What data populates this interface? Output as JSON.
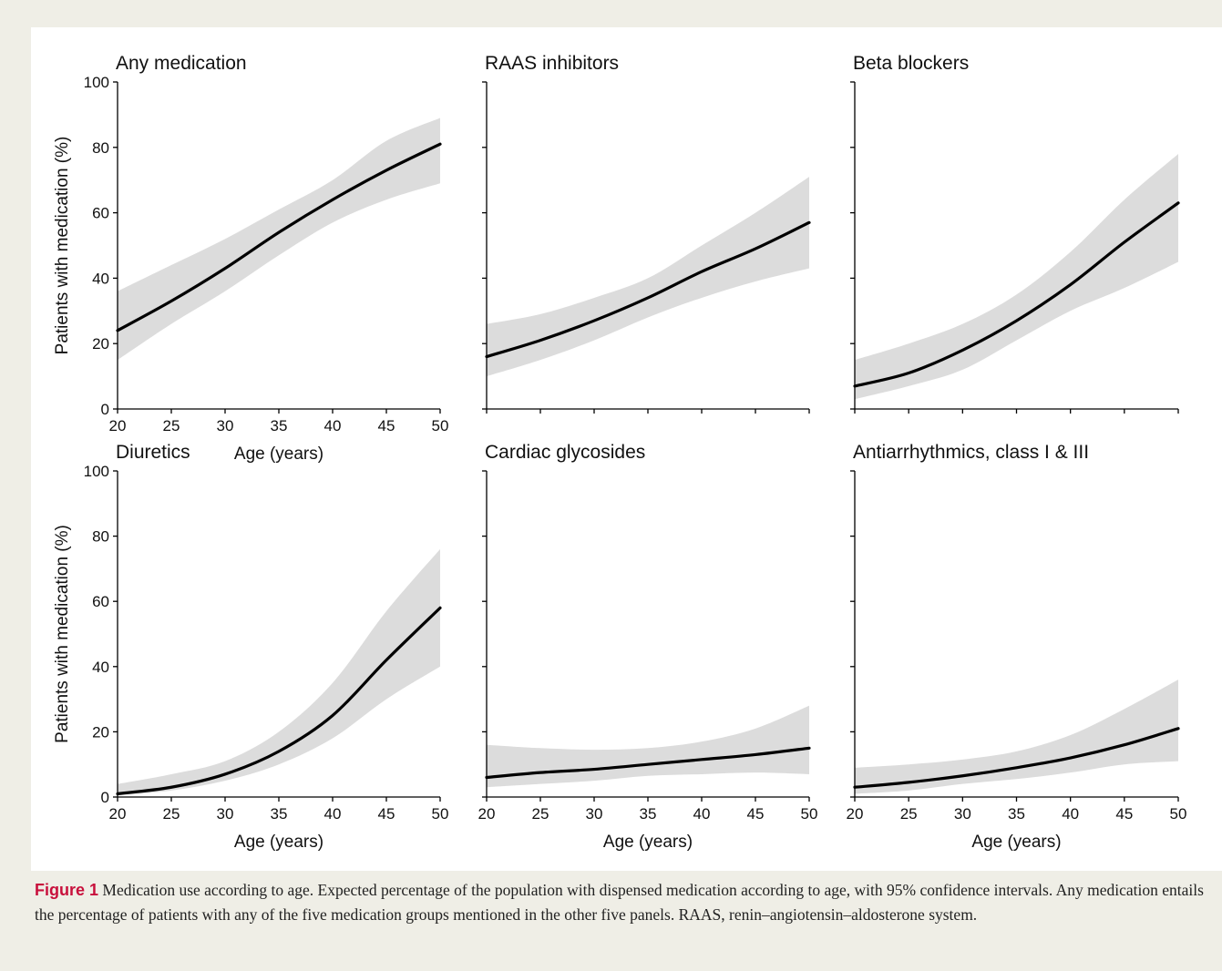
{
  "caption": {
    "label": "Figure 1",
    "text": " Medication use according to age. Expected percentage of the population with dispensed medication according to age, with 95% confidence intervals. Any medication entails the percentage of patients with any of the five medication groups mentioned in the other five panels. RAAS, renin–angiotensin–aldosterone system."
  },
  "colors": {
    "line": "#000000",
    "band": "#dcdcdc",
    "background": "#efeee6",
    "caption_label": "#c8103c"
  },
  "chart_data": [
    {
      "type": "line",
      "title": "Any medication",
      "xlabel": "Age (years)",
      "ylabel": "Patients with medication (%)",
      "xlim": [
        20,
        50
      ],
      "ylim": [
        0,
        100
      ],
      "xticks": [
        20,
        25,
        30,
        35,
        40,
        45,
        50
      ],
      "yticks": [
        0,
        20,
        40,
        60,
        80,
        100
      ],
      "x": [
        20,
        25,
        30,
        35,
        40,
        45,
        50
      ],
      "series": [
        {
          "values": [
            24,
            33,
            43,
            54,
            64,
            73,
            81
          ],
          "ci_lower": [
            15,
            26,
            36,
            47,
            57,
            64,
            69
          ],
          "ci_upper": [
            36,
            44,
            52,
            61,
            70,
            82,
            89
          ]
        }
      ],
      "grid": false
    },
    {
      "type": "line",
      "title": "RAAS inhibitors",
      "xlabel": "",
      "ylabel": "",
      "xlim": [
        20,
        50
      ],
      "ylim": [
        0,
        100
      ],
      "xticks": [],
      "yticks": [
        0,
        20,
        40,
        60,
        80,
        100
      ],
      "x": [
        20,
        25,
        30,
        35,
        40,
        45,
        50
      ],
      "series": [
        {
          "values": [
            16,
            21,
            27,
            34,
            42,
            49,
            57
          ],
          "ci_lower": [
            10,
            15,
            21,
            28,
            34,
            39,
            43
          ],
          "ci_upper": [
            26,
            29,
            34,
            40,
            50,
            60,
            71
          ]
        }
      ],
      "grid": false
    },
    {
      "type": "line",
      "title": "Beta blockers",
      "xlabel": "",
      "ylabel": "",
      "xlim": [
        20,
        50
      ],
      "ylim": [
        0,
        100
      ],
      "xticks": [],
      "yticks": [
        0,
        20,
        40,
        60,
        80,
        100
      ],
      "x": [
        20,
        25,
        30,
        35,
        40,
        45,
        50
      ],
      "series": [
        {
          "values": [
            7,
            11,
            18,
            27,
            38,
            51,
            63
          ],
          "ci_lower": [
            3,
            7,
            12,
            21,
            30,
            37,
            45
          ],
          "ci_upper": [
            15,
            20,
            26,
            35,
            48,
            64,
            78
          ]
        }
      ],
      "grid": false
    },
    {
      "type": "line",
      "title": "Diuretics",
      "xlabel": "Age (years)",
      "ylabel": "Patients with medication (%)",
      "xlim": [
        20,
        50
      ],
      "ylim": [
        0,
        100
      ],
      "xticks": [
        20,
        25,
        30,
        35,
        40,
        45,
        50
      ],
      "yticks": [
        0,
        20,
        40,
        60,
        80,
        100
      ],
      "x": [
        20,
        25,
        30,
        35,
        40,
        45,
        50
      ],
      "series": [
        {
          "values": [
            1,
            3,
            7,
            14,
            25,
            42,
            58
          ],
          "ci_lower": [
            0.5,
            2,
            5,
            10,
            18,
            30,
            40
          ],
          "ci_upper": [
            4,
            7,
            11,
            20,
            35,
            57,
            76
          ]
        }
      ],
      "grid": false
    },
    {
      "type": "line",
      "title": "Cardiac glycosides",
      "xlabel": "Age (years)",
      "ylabel": "",
      "xlim": [
        20,
        50
      ],
      "ylim": [
        0,
        100
      ],
      "xticks": [
        20,
        25,
        30,
        35,
        40,
        45,
        50
      ],
      "yticks": [
        0,
        20,
        40,
        60,
        80,
        100
      ],
      "x": [
        20,
        25,
        30,
        35,
        40,
        45,
        50
      ],
      "series": [
        {
          "values": [
            6,
            7.5,
            8.5,
            10,
            11.5,
            13,
            15
          ],
          "ci_lower": [
            3,
            4,
            5,
            6.5,
            7,
            7.5,
            7
          ],
          "ci_upper": [
            16,
            15,
            14.5,
            15,
            17,
            21,
            28
          ]
        }
      ],
      "grid": false
    },
    {
      "type": "line",
      "title": "Antiarrhythmics, class I & III",
      "xlabel": "Age (years)",
      "ylabel": "",
      "xlim": [
        20,
        50
      ],
      "ylim": [
        0,
        100
      ],
      "xticks": [
        20,
        25,
        30,
        35,
        40,
        45,
        50
      ],
      "yticks": [
        0,
        20,
        40,
        60,
        80,
        100
      ],
      "x": [
        20,
        25,
        30,
        35,
        40,
        45,
        50
      ],
      "series": [
        {
          "values": [
            3,
            4.5,
            6.5,
            9,
            12,
            16,
            21
          ],
          "ci_lower": [
            1,
            2,
            4,
            5.5,
            7.5,
            10,
            11
          ],
          "ci_upper": [
            9,
            10,
            11.5,
            14,
            19,
            27,
            36
          ]
        }
      ],
      "grid": false
    }
  ]
}
